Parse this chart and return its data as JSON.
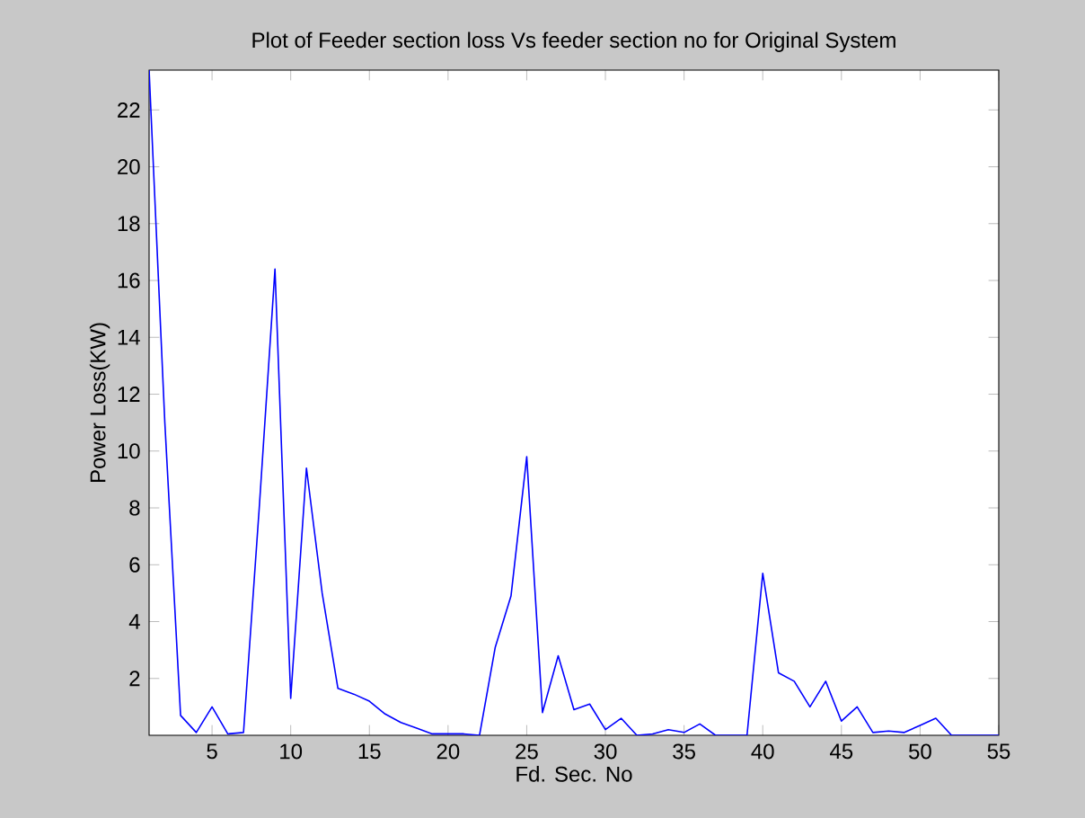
{
  "chart_data": {
    "type": "line",
    "title": "Plot of  Feeder section loss Vs feeder section no for Original System",
    "xlabel": "Fd. Sec. No",
    "ylabel": "Power Loss(KW)",
    "x": [
      1,
      2,
      3,
      4,
      5,
      6,
      7,
      8,
      9,
      10,
      11,
      12,
      13,
      14,
      15,
      16,
      17,
      18,
      19,
      20,
      21,
      22,
      23,
      24,
      25,
      26,
      27,
      28,
      29,
      30,
      31,
      32,
      33,
      34,
      35,
      36,
      37,
      38,
      39,
      40,
      41,
      42,
      43,
      44,
      45,
      46,
      47,
      48,
      49,
      50,
      51,
      52,
      53,
      54,
      55
    ],
    "series": [
      {
        "color": "#0000ff",
        "values": [
          23.4,
          11,
          0.7,
          0.1,
          1.0,
          0.05,
          0.1,
          8,
          16.4,
          1.3,
          9.4,
          5.0,
          1.65,
          1.45,
          1.2,
          0.75,
          0.45,
          0.25,
          0.05,
          0.05,
          0.05,
          0.0,
          3.1,
          4.9,
          9.8,
          0.8,
          2.8,
          0.9,
          1.1,
          0.2,
          0.6,
          0.0,
          0.05,
          0.2,
          0.1,
          0.4,
          0.0,
          0.0,
          0.0,
          5.7,
          2.2,
          1.9,
          1.0,
          1.9,
          0.5,
          1.0,
          0.1,
          0.15,
          0.1,
          0.35,
          0.6,
          0.0,
          0.0,
          0.0,
          0.0
        ]
      }
    ],
    "xlim": [
      1,
      55
    ],
    "ylim": [
      0,
      23.4
    ],
    "xticks": [
      5,
      10,
      15,
      20,
      25,
      30,
      35,
      40,
      45,
      50,
      55
    ],
    "yticks": [
      2,
      4,
      6,
      8,
      10,
      12,
      14,
      16,
      18,
      20,
      22
    ],
    "grid": false,
    "marker": "none",
    "line_style": "solid"
  }
}
